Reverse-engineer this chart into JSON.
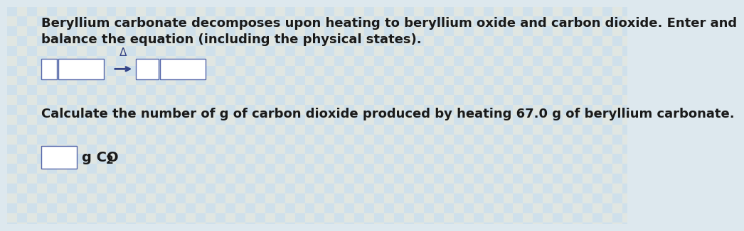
{
  "bg_color": "#dde8ee",
  "text_color": "#1a1a1a",
  "title_line1": "Beryllium carbonate decomposes upon heating to beryllium oxide and carbon dioxide. Enter and",
  "title_line2": "balance the equation (including the physical states).",
  "calc_text": "Calculate the number of g of carbon dioxide produced by heating 67.0 g of beryllium carbonate.",
  "unit_text": "g CO",
  "unit_sub": "2",
  "font_size_body": 13.0,
  "font_size_calc": 13.0,
  "pattern_color_blue": "#b8d4e8",
  "pattern_color_cream": "#e8e4d0"
}
